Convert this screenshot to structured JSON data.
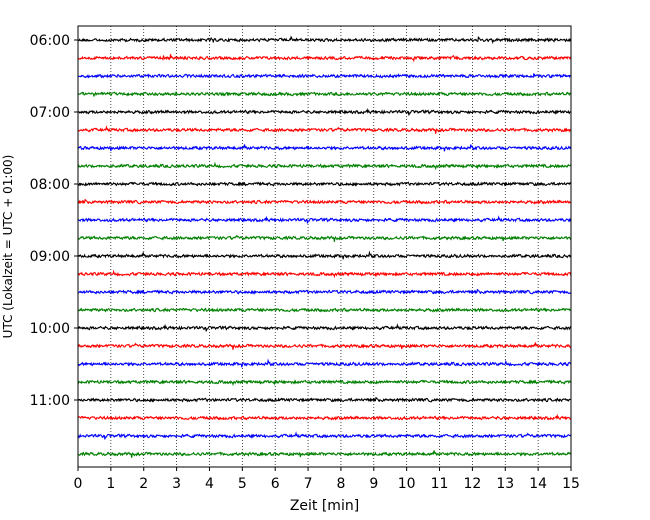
{
  "chart_data": {
    "type": "line",
    "title": "",
    "xlabel": "Zeit  [min]",
    "ylabel": "UTC (Lokalzeit = UTC + 01:00)",
    "xlim": [
      0,
      15
    ],
    "x_ticks": [
      "0",
      "1",
      "2",
      "3",
      "4",
      "5",
      "6",
      "7",
      "8",
      "9",
      "10",
      "11",
      "12",
      "13",
      "14",
      "15"
    ],
    "y_tick_labels": [
      "06:00",
      "07:00",
      "08:00",
      "09:00",
      "10:00",
      "11:00"
    ],
    "y_start_time": "06:00",
    "trace_interval_min": 15,
    "trace_count": 24,
    "trace_colors": [
      "#000000",
      "#ff0000",
      "#0000ff",
      "#008000"
    ],
    "grid": "vertical dotted lines at each minute",
    "legend": "none"
  }
}
